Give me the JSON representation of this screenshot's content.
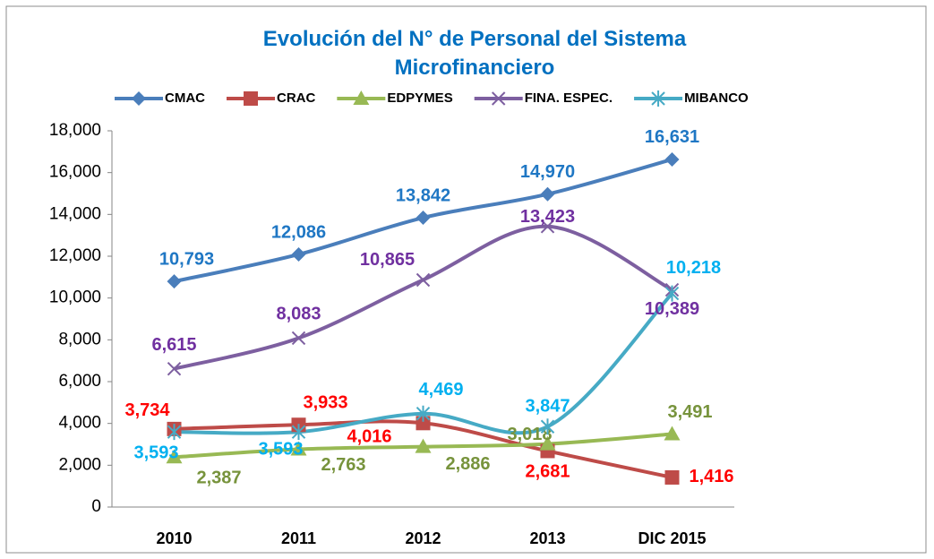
{
  "chart_data": {
    "type": "line",
    "title": "Evolución del N° de Personal del Sistema Microfinanciero",
    "categories": [
      "2010",
      "2011",
      "2012",
      "2013",
      "DIC 2015"
    ],
    "ylim": [
      0,
      18000
    ],
    "yticks": [
      0,
      {
        "value": 2000,
        "label": "2,000"
      },
      {
        "value": 4000,
        "label": "4,000"
      },
      {
        "value": 6000,
        "label": "6,000"
      },
      {
        "value": 8000,
        "label": "8,000"
      },
      {
        "value": 10000,
        "label": "10,000"
      },
      {
        "value": 12000,
        "label": "12,000"
      },
      {
        "value": 14000,
        "label": "14,000"
      },
      {
        "value": 16000,
        "label": "16,000"
      },
      {
        "value": 18000,
        "label": "18,000"
      }
    ],
    "grid": false,
    "legend": "top",
    "series": [
      {
        "name": "CMAC",
        "color": "#4a7ebb",
        "label_color": "#1f77c4",
        "marker": "diamond",
        "values": [
          10793,
          12086,
          13842,
          14970,
          16631
        ],
        "value_labels": [
          "10,793",
          "12,086",
          "13,842",
          "14,970",
          "16,631"
        ]
      },
      {
        "name": "CRAC",
        "color": "#be4b48",
        "label_color": "#ff0000",
        "marker": "square",
        "values": [
          3734,
          3933,
          4016,
          2681,
          1416
        ],
        "value_labels": [
          "3,734",
          "3,933",
          "4,016",
          "2,681",
          "1,416"
        ]
      },
      {
        "name": "EDPYMES",
        "color": "#98b954",
        "label_color": "#77933c",
        "marker": "triangle",
        "values": [
          2387,
          2763,
          2886,
          3018,
          3491
        ],
        "value_labels": [
          "2,387",
          "2,763",
          "2,886",
          "3,018",
          "3,491"
        ]
      },
      {
        "name": "FINA. ESPEC.",
        "color": "#7d5fa0",
        "label_color": "#7030a0",
        "marker": "x",
        "values": [
          6615,
          8083,
          10865,
          13423,
          10389
        ],
        "value_labels": [
          "6,615",
          "8,083",
          "10,865",
          "13,423",
          "10,389"
        ]
      },
      {
        "name": "MIBANCO",
        "color": "#46aac5",
        "label_color": "#00b0f0",
        "marker": "star",
        "values": [
          3593,
          3593,
          4469,
          3847,
          10218
        ],
        "value_labels": [
          "3,593",
          "3,593",
          "4,469",
          "3,847",
          "10,218"
        ]
      }
    ]
  }
}
